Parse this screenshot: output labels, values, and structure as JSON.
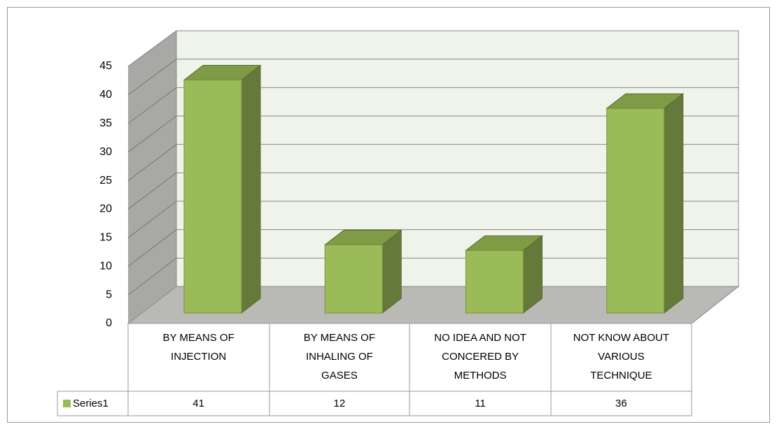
{
  "chart_data": {
    "type": "bar3d",
    "categories": [
      "BY MEANS OF INJECTION",
      "BY MEANS OF INHALING OF GASES",
      "NO IDEA AND NOT CONCERED BY METHODS",
      "NOT KNOW ABOUT VARIOUS TECHNIQUE"
    ],
    "series": [
      {
        "name": "Series1",
        "color": "#9bbb59",
        "values": [
          41,
          12,
          11,
          36
        ]
      }
    ],
    "ylim": [
      0,
      45
    ],
    "yticks": [
      0,
      5,
      10,
      15,
      20,
      25,
      30,
      35,
      40,
      45
    ],
    "grid": true
  }
}
